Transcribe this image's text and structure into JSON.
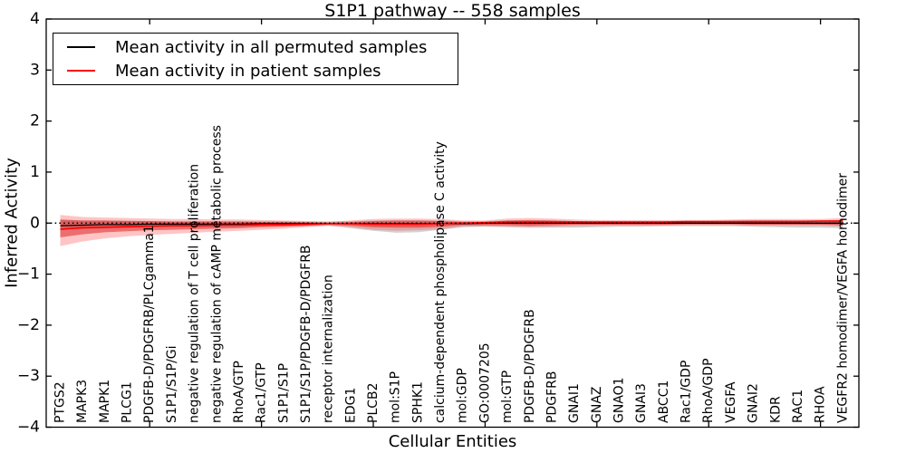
{
  "figure": {
    "title": "S1P1 pathway -- 558 samples",
    "xlabel": "Cellular Entities",
    "ylabel": "Inferred Activity"
  },
  "legend": {
    "position": "upper-left",
    "items": [
      {
        "label": "Mean activity in all permuted samples",
        "color": "#000000"
      },
      {
        "label": "Mean activity in patient samples",
        "color": "#ff0000"
      }
    ]
  },
  "colors": {
    "patient_line": "#ff0000",
    "permuted_line": "#000000",
    "patient_band_outer": "rgba(255,60,60,0.30)",
    "patient_band_inner": "rgba(215,25,25,0.50)",
    "permuted_band": "rgba(110,110,110,0.30)",
    "frame": "#000000",
    "background": "#ffffff"
  },
  "chart_data": {
    "type": "line",
    "title": "S1P1 pathway -- 558 samples",
    "xlabel": "Cellular Entities",
    "ylabel": "Inferred Activity",
    "ylim": [
      -4,
      4
    ],
    "yticks": [
      -4,
      -3,
      -2,
      -1,
      0,
      1,
      2,
      3,
      4
    ],
    "xtick_indices": [
      4,
      9,
      14,
      19,
      24,
      29,
      34
    ],
    "grid": false,
    "legend_position": "upper-left",
    "zero_reference_line": 0,
    "categories": [
      "PTGS2",
      "MAPK3",
      "MAPK1",
      "PLCG1",
      "PDGFB-D/PDGFRB/PLCgamma1",
      "S1P1/S1P/Gi",
      "negative regulation of T cell proliferation",
      "negative regulation of cAMP metabolic process",
      "RhoA/GTP",
      "Rac1/GTP",
      "S1P1/S1P",
      "S1P1/S1P/PDGFB-D/PDGFRB",
      "receptor internalization",
      "EDG1",
      "PLCB2",
      "mol:S1P",
      "SPHK1",
      "calcium-dependent phospholipase C activity",
      "mol:GDP",
      "GO:0007205",
      "mol:GTP",
      "PDGFB-D/PDGFRB",
      "PDGFRB",
      "GNAI1",
      "GNAZ",
      "GNAO1",
      "GNAI3",
      "ABCC1",
      "Rac1/GDP",
      "RhoA/GDP",
      "VEGFA",
      "GNAI2",
      "KDR",
      "RAC1",
      "RHOA",
      "VEGFR2 homodimer/VEGFA homodimer"
    ],
    "series": [
      {
        "name": "Mean activity in all permuted samples",
        "color": "#000000",
        "band_color": "rgba(110,110,110,0.30)",
        "values": [
          -0.05,
          -0.04,
          -0.03,
          -0.03,
          -0.02,
          -0.02,
          -0.02,
          -0.02,
          -0.02,
          -0.01,
          -0.01,
          -0.01,
          -0.01,
          -0.01,
          -0.01,
          -0.01,
          -0.01,
          -0.01,
          -0.01,
          0,
          0,
          0,
          0,
          0,
          0,
          0,
          0,
          0,
          0,
          0,
          0,
          0,
          0,
          0,
          0,
          0
        ],
        "band_upper": [
          0.06,
          0.05,
          0.05,
          0.05,
          0.04,
          0.04,
          0.04,
          0.04,
          0.04,
          0.04,
          0.04,
          0.03,
          0.03,
          0.04,
          0.05,
          0.05,
          0.05,
          0.05,
          0.04,
          0.04,
          0.05,
          0.05,
          0.05,
          0.04,
          0.04,
          0.04,
          0.04,
          0.04,
          0.04,
          0.04,
          0.05,
          0.05,
          0.05,
          0.05,
          0.05,
          0.06
        ],
        "band_lower": [
          -0.14,
          -0.12,
          -0.11,
          -0.1,
          -0.09,
          -0.08,
          -0.08,
          -0.08,
          -0.07,
          -0.07,
          -0.06,
          -0.06,
          -0.05,
          -0.1,
          -0.15,
          -0.19,
          -0.18,
          -0.13,
          -0.08,
          -0.07,
          -0.08,
          -0.09,
          -0.09,
          -0.09,
          -0.08,
          -0.07,
          -0.07,
          -0.06,
          -0.06,
          -0.06,
          -0.06,
          -0.07,
          -0.08,
          -0.09,
          -0.09,
          -0.1
        ]
      },
      {
        "name": "Mean activity in patient samples",
        "color": "#ff0000",
        "outer_band_color": "rgba(255,60,60,0.30)",
        "inner_band_color": "rgba(215,25,25,0.50)",
        "values": [
          -0.12,
          -0.09,
          -0.08,
          -0.07,
          -0.06,
          -0.05,
          -0.05,
          -0.04,
          -0.04,
          -0.03,
          -0.03,
          -0.02,
          -0.01,
          -0.01,
          -0.02,
          -0.02,
          -0.02,
          -0.01,
          0.0,
          0.01,
          0.02,
          0.02,
          0.02,
          0.02,
          0.02,
          0.02,
          0.02,
          0.02,
          0.03,
          0.03,
          0.03,
          0.03,
          0.03,
          0.03,
          0.04,
          0.04
        ],
        "outer_upper": [
          0.16,
          0.12,
          0.11,
          0.1,
          0.09,
          0.08,
          0.08,
          0.07,
          0.07,
          0.06,
          0.05,
          0.04,
          0.03,
          0.05,
          0.08,
          0.09,
          0.09,
          0.08,
          0.05,
          0.05,
          0.09,
          0.1,
          0.09,
          0.07,
          0.06,
          0.06,
          0.06,
          0.06,
          0.06,
          0.06,
          0.07,
          0.08,
          0.08,
          0.08,
          0.08,
          0.1
        ],
        "outer_lower": [
          -0.45,
          -0.36,
          -0.3,
          -0.26,
          -0.23,
          -0.21,
          -0.19,
          -0.17,
          -0.15,
          -0.13,
          -0.11,
          -0.08,
          -0.05,
          -0.08,
          -0.13,
          -0.15,
          -0.14,
          -0.12,
          -0.07,
          -0.06,
          -0.07,
          -0.08,
          -0.07,
          -0.06,
          -0.05,
          -0.05,
          -0.05,
          -0.05,
          -0.04,
          -0.04,
          -0.04,
          -0.05,
          -0.05,
          -0.05,
          -0.05,
          -0.06
        ],
        "inner_upper": [
          0.07,
          0.05,
          0.05,
          0.04,
          0.04,
          0.03,
          0.03,
          0.03,
          0.03,
          0.02,
          0.02,
          0.02,
          0.01,
          0.02,
          0.04,
          0.05,
          0.05,
          0.04,
          0.02,
          0.02,
          0.05,
          0.06,
          0.05,
          0.04,
          0.03,
          0.03,
          0.03,
          0.03,
          0.03,
          0.03,
          0.04,
          0.05,
          0.05,
          0.05,
          0.05,
          0.06
        ],
        "inner_lower": [
          -0.28,
          -0.22,
          -0.18,
          -0.16,
          -0.14,
          -0.13,
          -0.12,
          -0.11,
          -0.1,
          -0.08,
          -0.07,
          -0.05,
          -0.03,
          -0.05,
          -0.08,
          -0.09,
          -0.09,
          -0.07,
          -0.04,
          -0.04,
          -0.04,
          -0.05,
          -0.04,
          -0.03,
          -0.03,
          -0.03,
          -0.03,
          -0.03,
          -0.02,
          -0.02,
          -0.02,
          -0.03,
          -0.03,
          -0.03,
          -0.03,
          -0.04
        ]
      }
    ]
  }
}
